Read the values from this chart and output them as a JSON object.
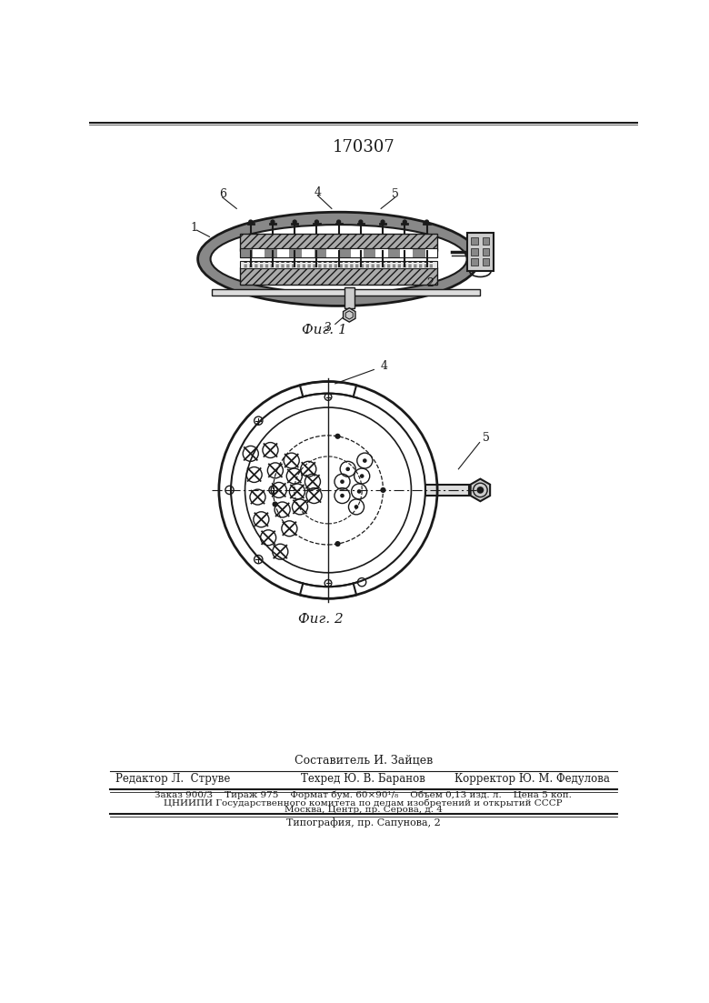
{
  "patent_number": "170307",
  "fig1_caption": "Фиг. 1",
  "fig2_caption": "Фиг. 2",
  "footer_line1": "Составитель И. Зайцев",
  "footer_line2_col1": "Редактор Л.  Струве",
  "footer_line2_col2": "Техред Ю. В. Баранов",
  "footer_line2_col3": "Корректор Ю. М. Федулова",
  "footer_line3": "Заказ 900/3    Тираж 975    Формат бум. 60×90¹/₈    Объем 0,13 изд. л.    Цена 5 коп.",
  "footer_line4": "ЦНИИПИ Государственного комитета по делам изобретений и открытий СССР",
  "footer_line5": "Москва, Центр, пр. Серова, д. 4",
  "footer_line6": "Типография, пр. Сапунова, 2",
  "bg_color": "#ffffff",
  "line_color": "#1a1a1a"
}
